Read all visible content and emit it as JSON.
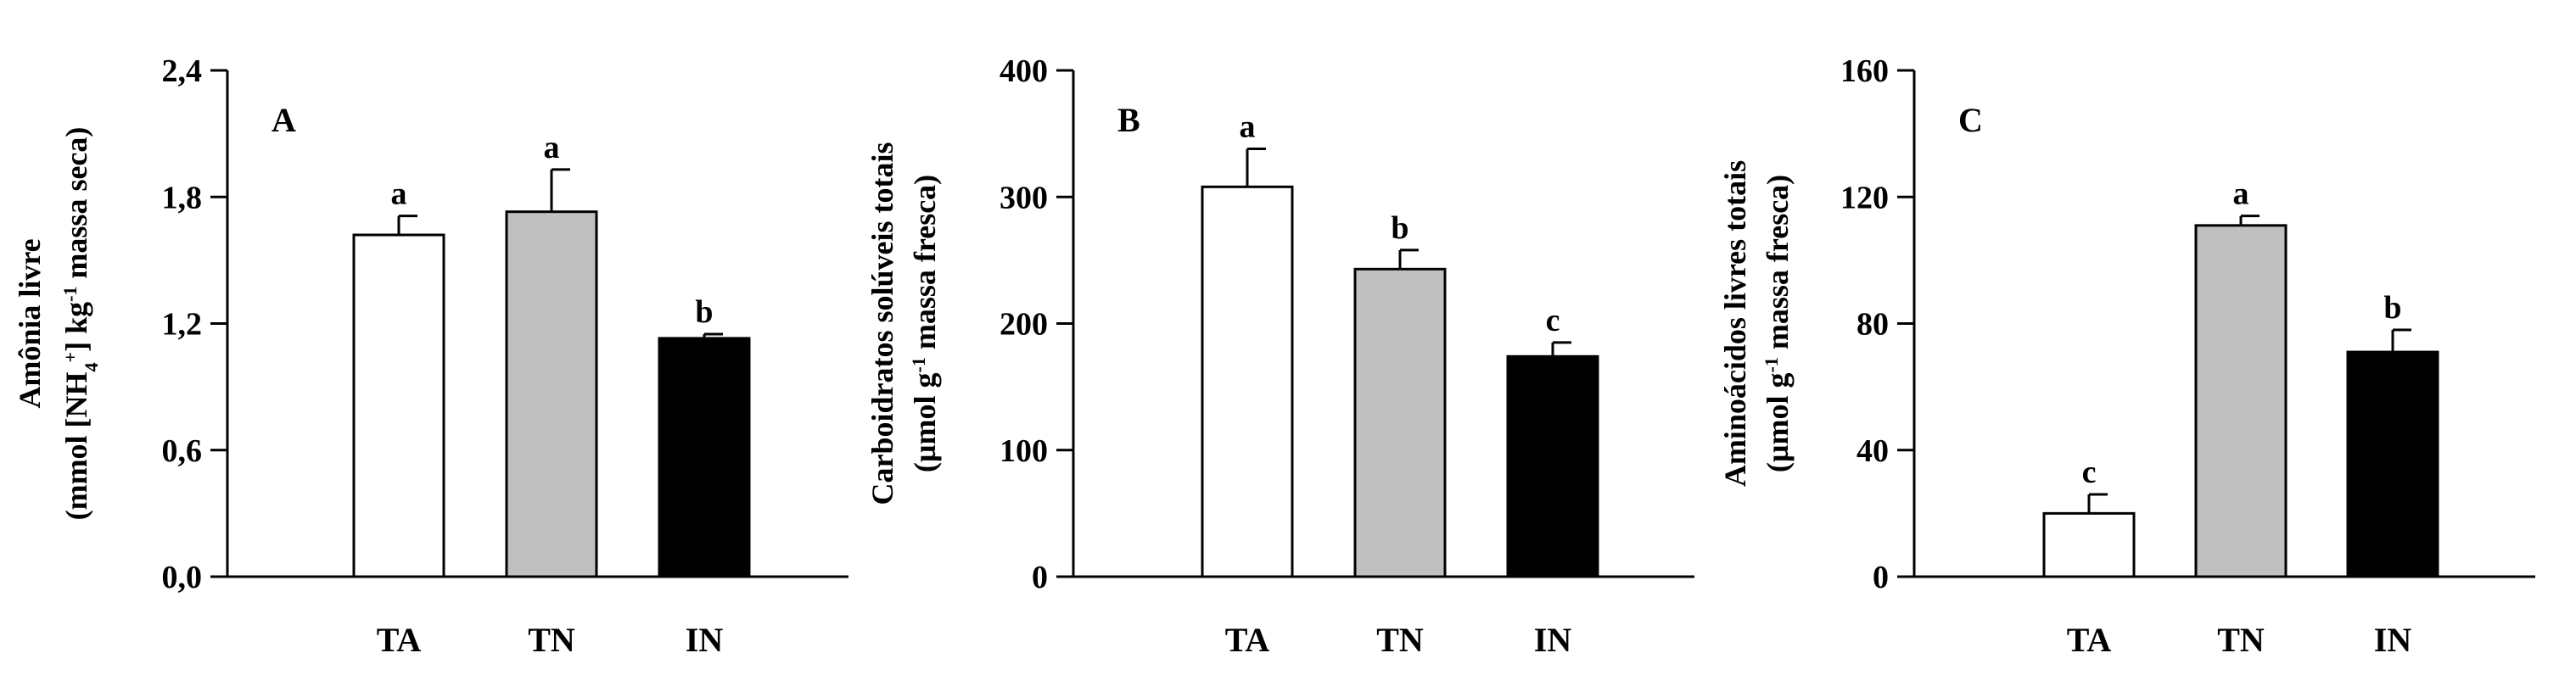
{
  "chart_data": [
    {
      "type": "bar",
      "panel_label": "A",
      "ylabel_line1_parts": [
        "Amônia livre"
      ],
      "ylabel_line2_parts": [
        "(mmol [NH",
        "4",
        "+",
        "] kg",
        "-1",
        " massa seca)"
      ],
      "categories": [
        "TA",
        "TN",
        "IN"
      ],
      "values": [
        1.62,
        1.73,
        1.13
      ],
      "errors": [
        0.09,
        0.2,
        0.02
      ],
      "significance": [
        "a",
        "a",
        "b"
      ],
      "ylim": [
        0,
        2.4
      ],
      "yticks": [
        0,
        0.6,
        1.2,
        1.8,
        2.4
      ],
      "ytick_labels": [
        "0,0",
        "0,6",
        "1,2",
        "1,8",
        "2,4"
      ],
      "bar_colors": [
        "#ffffff",
        "#c0c0c0",
        "#000000"
      ]
    },
    {
      "type": "bar",
      "panel_label": "B",
      "ylabel_line1_parts": [
        "Carboidratos solúveis totais"
      ],
      "ylabel_line2_parts": [
        "(µmol g",
        "-1",
        " massa fresca)"
      ],
      "categories": [
        "TA",
        "TN",
        "IN"
      ],
      "values": [
        308,
        243,
        174
      ],
      "errors": [
        30,
        15,
        11
      ],
      "significance": [
        "a",
        "b",
        "c"
      ],
      "ylim": [
        0,
        400
      ],
      "yticks": [
        0,
        100,
        200,
        300,
        400
      ],
      "ytick_labels": [
        "0",
        "100",
        "200",
        "300",
        "400"
      ],
      "bar_colors": [
        "#ffffff",
        "#c0c0c0",
        "#000000"
      ]
    },
    {
      "type": "bar",
      "panel_label": "C",
      "ylabel_line1_parts": [
        "Aminoácidos livres totais"
      ],
      "ylabel_line2_parts": [
        "(µmol g",
        "-1",
        " massa fresca)"
      ],
      "categories": [
        "TA",
        "TN",
        "IN"
      ],
      "values": [
        20,
        111,
        71
      ],
      "errors": [
        6,
        3,
        7
      ],
      "significance": [
        "c",
        "a",
        "b"
      ],
      "ylim": [
        0,
        160
      ],
      "yticks": [
        0,
        40,
        80,
        120,
        160
      ],
      "ytick_labels": [
        "0",
        "40",
        "80",
        "120",
        "160"
      ],
      "bar_colors": [
        "#ffffff",
        "#c0c0c0",
        "#000000"
      ]
    }
  ]
}
